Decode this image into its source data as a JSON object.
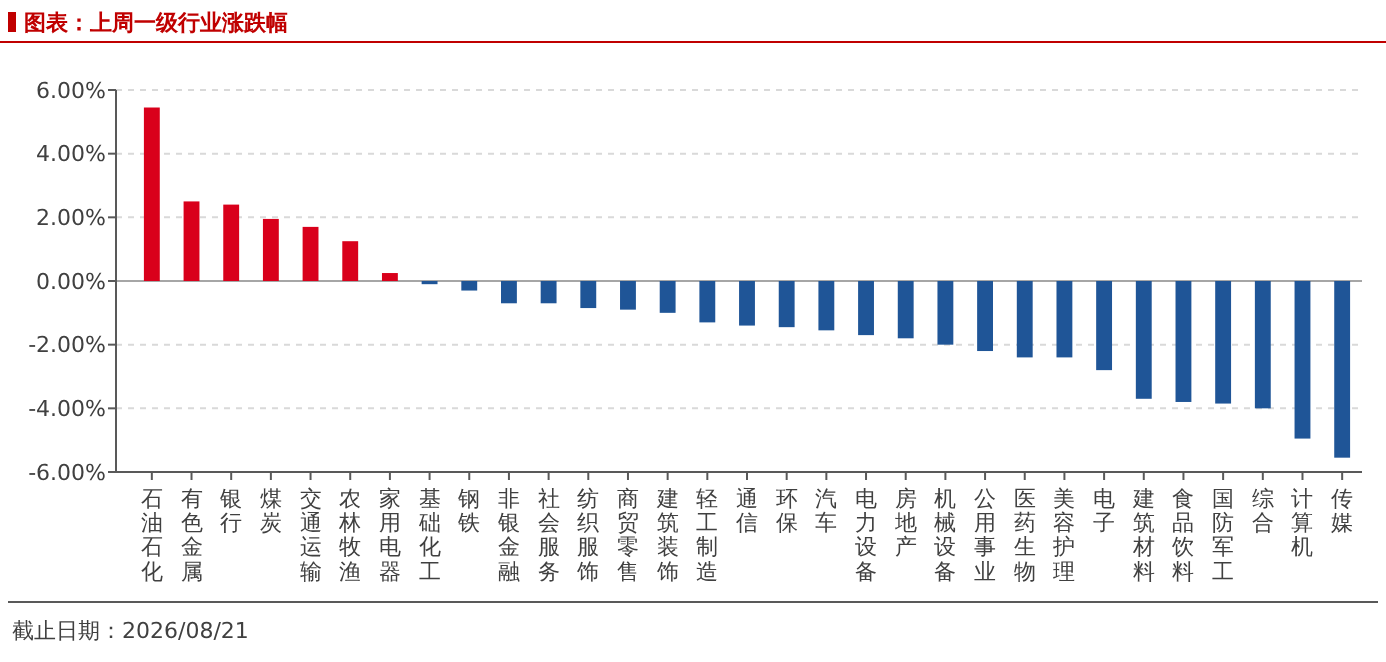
{
  "chart_data": {
    "type": "bar",
    "title": "图表：上周一级行业涨跌幅",
    "categories": [
      "石油石化",
      "有色金属",
      "银行",
      "煤炭",
      "交通运输",
      "农林牧渔",
      "家用电器",
      "基础化工",
      "钢铁",
      "非银金融",
      "社会服务",
      "纺织服饰",
      "商贸零售",
      "建筑装饰",
      "轻工制造",
      "通信",
      "环保",
      "汽车",
      "电力设备",
      "房地产",
      "机械设备",
      "公用事业",
      "医药生物",
      "美容护理",
      "电子",
      "建筑材料",
      "食品饮料",
      "国防军工",
      "综合",
      "计算机",
      "传媒"
    ],
    "values": [
      5.45,
      2.5,
      2.4,
      1.95,
      1.7,
      1.25,
      0.25,
      -0.1,
      -0.3,
      -0.7,
      -0.7,
      -0.85,
      -0.9,
      -1.0,
      -1.3,
      -1.4,
      -1.45,
      -1.55,
      -1.7,
      -1.8,
      -2.0,
      -2.2,
      -2.4,
      -2.4,
      -2.8,
      -3.7,
      -3.8,
      -3.85,
      -4.0,
      -4.95,
      -5.55
    ],
    "colors": [
      "#d9001b",
      "#d9001b",
      "#d9001b",
      "#d9001b",
      "#d9001b",
      "#d9001b",
      "#d9001b",
      "#1f5597",
      "#1f5597",
      "#1f5597",
      "#1f5597",
      "#1f5597",
      "#1f5597",
      "#1f5597",
      "#1f5597",
      "#1f5597",
      "#1f5597",
      "#1f5597",
      "#1f5597",
      "#1f5597",
      "#1f5597",
      "#1f5597",
      "#1f5597",
      "#1f5597",
      "#1f5597",
      "#1f5597",
      "#1f5597",
      "#1f5597",
      "#1f5597",
      "#1f5597",
      "#1f5597"
    ],
    "ylim": [
      -6,
      6
    ],
    "yticks": [
      {
        "value": -6,
        "label": "-6.00%"
      },
      {
        "value": -4,
        "label": "-4.00%"
      },
      {
        "value": -2,
        "label": "-2.00%"
      },
      {
        "value": 0,
        "label": "0.00%"
      },
      {
        "value": 2,
        "label": "2.00%"
      },
      {
        "value": 4,
        "label": "4.00%"
      },
      {
        "value": 6,
        "label": "6.00%"
      }
    ],
    "grid": "y",
    "annotations": [
      "截止日期：2026/08/21"
    ]
  }
}
